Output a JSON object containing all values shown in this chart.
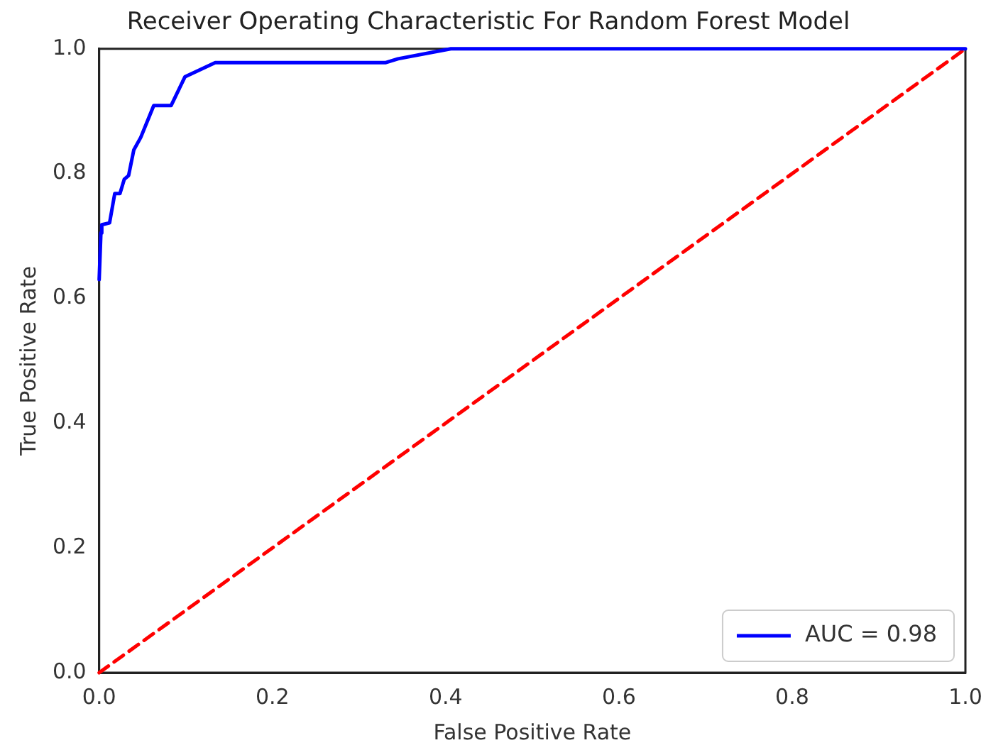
{
  "chart_data": {
    "type": "line",
    "title": "Receiver Operating Characteristic For Random Forest Model",
    "xlabel": "False Positive Rate",
    "ylabel": "True Positive Rate",
    "xlim": [
      0,
      1
    ],
    "ylim": [
      0,
      1
    ],
    "xticks": [
      {
        "value": 0,
        "label": "0.0"
      },
      {
        "value": 0.2,
        "label": "0.2"
      },
      {
        "value": 0.4,
        "label": "0.4"
      },
      {
        "value": 0.6,
        "label": "0.6"
      },
      {
        "value": 0.8,
        "label": "0.8"
      },
      {
        "value": 1,
        "label": "1.0"
      }
    ],
    "yticks": [
      {
        "value": 0,
        "label": "0.0"
      },
      {
        "value": 0.2,
        "label": "0.2"
      },
      {
        "value": 0.4,
        "label": "0.4"
      },
      {
        "value": 0.6,
        "label": "0.6"
      },
      {
        "value": 0.8,
        "label": "0.8"
      },
      {
        "value": 1,
        "label": "1.0"
      }
    ],
    "grid": false,
    "legend": "bottom right",
    "marker": "none",
    "series": [
      {
        "name": "AUC = 0.98",
        "color": "#0000ff",
        "line_style": "solid",
        "x": [
          0,
          0.002,
          0.003,
          0.012,
          0.018,
          0.024,
          0.029,
          0.034,
          0.04,
          0.048,
          0.063,
          0.083,
          0.099,
          0.134,
          0.331,
          0.345,
          0.406,
          1
        ],
        "values": [
          0.63,
          0.705,
          0.718,
          0.721,
          0.768,
          0.768,
          0.791,
          0.797,
          0.838,
          0.858,
          0.909,
          0.909,
          0.955,
          0.978,
          0.978,
          0.984,
          1,
          1
        ]
      },
      {
        "color": "#ff0000",
        "line_style": "dashed",
        "x": [
          0,
          1
        ],
        "values": [
          0,
          1
        ]
      }
    ]
  }
}
